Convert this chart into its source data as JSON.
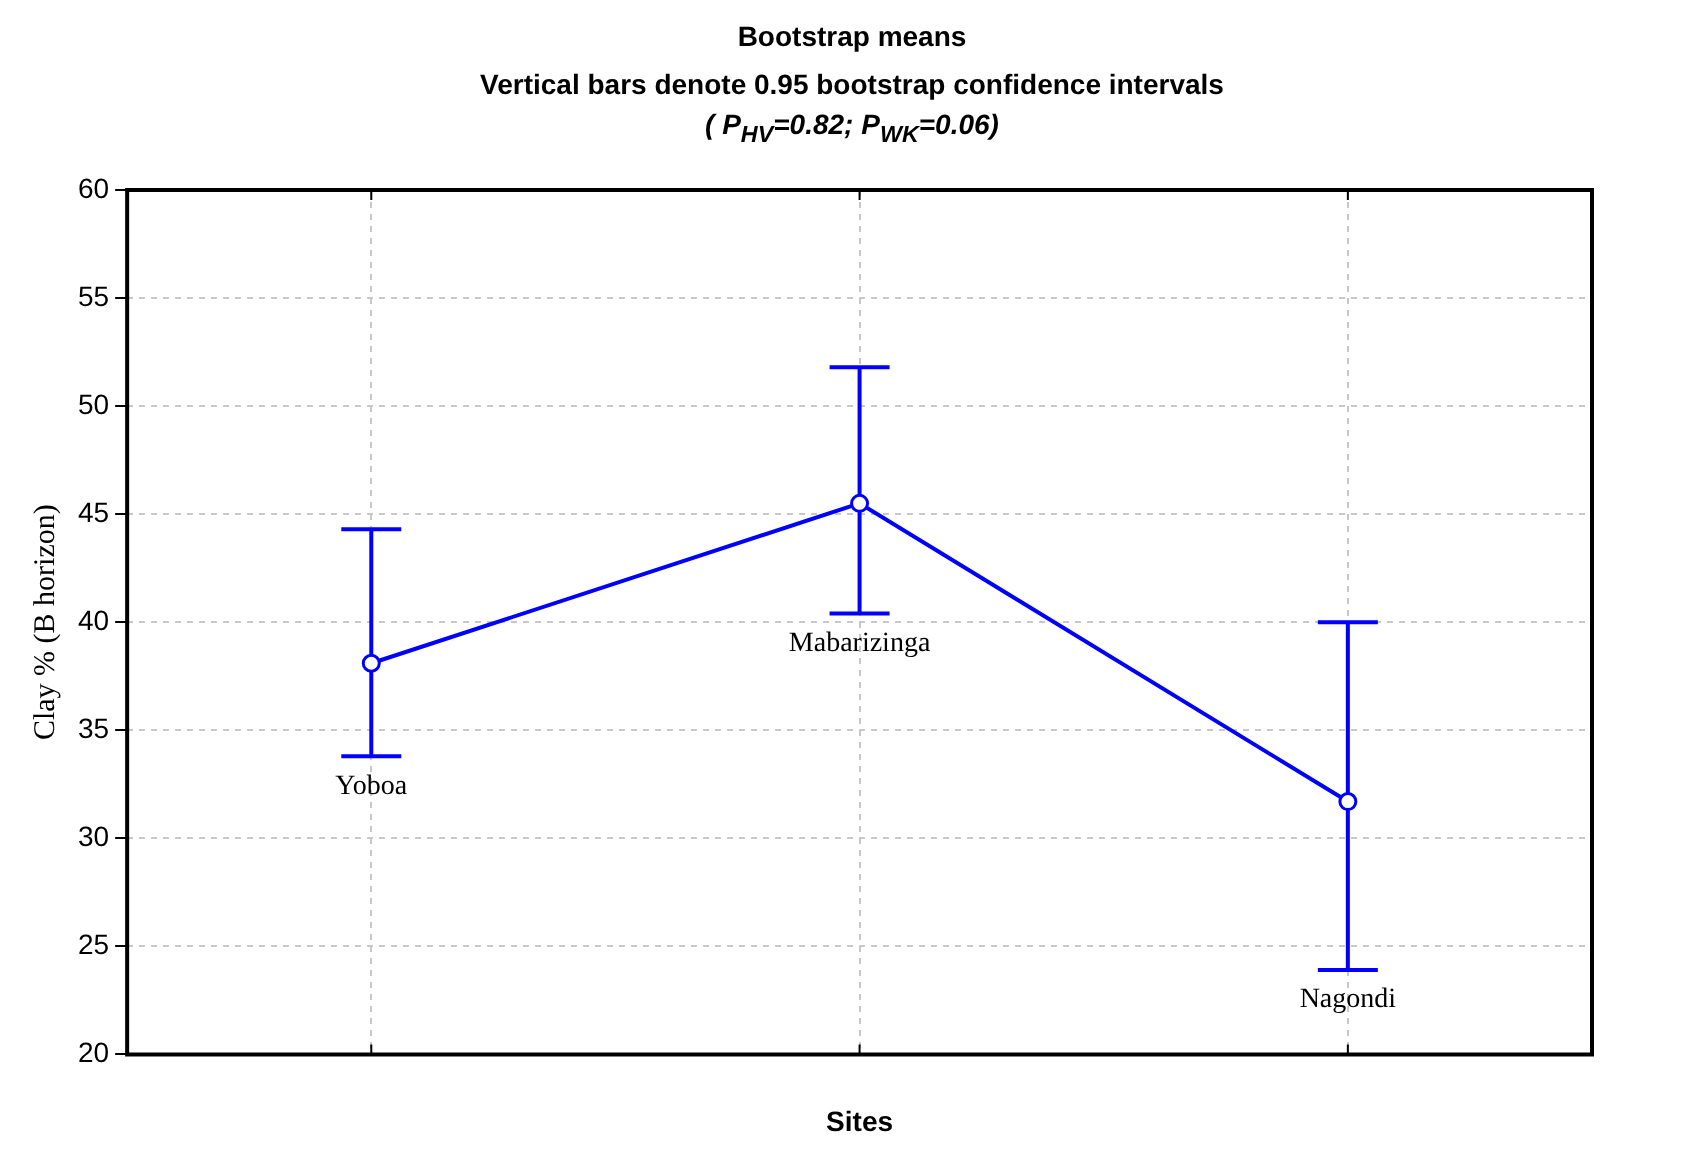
{
  "chart_data": {
    "type": "line",
    "title": "Bootstrap means",
    "subtitle": "Vertical bars denote 0.95 bootstrap confidence intervals",
    "annotations": [
      "( P$_{HV}$=0.82; P$_{WK}$=0.06)"
    ],
    "xlabel": "Sites",
    "ylabel": "Clay % (B horizon)",
    "categories": [
      "Yoboa",
      "Mabarizinga",
      "Nagondi"
    ],
    "series": [
      {
        "color": "#0000ff",
        "values": [
          38.1,
          45.5,
          31.7
        ],
        "errors": [
          [
            33.8,
            44.3
          ],
          [
            40.4,
            51.8
          ],
          [
            23.9,
            40.0
          ]
        ]
      }
    ],
    "ylim": [
      20,
      60
    ],
    "yticks": [
      20,
      25,
      30,
      35,
      40,
      45,
      50,
      55,
      60
    ],
    "grid": true,
    "legend": false,
    "marker": "circle",
    "line_style": "solid",
    "tick_labels": "y"
  }
}
